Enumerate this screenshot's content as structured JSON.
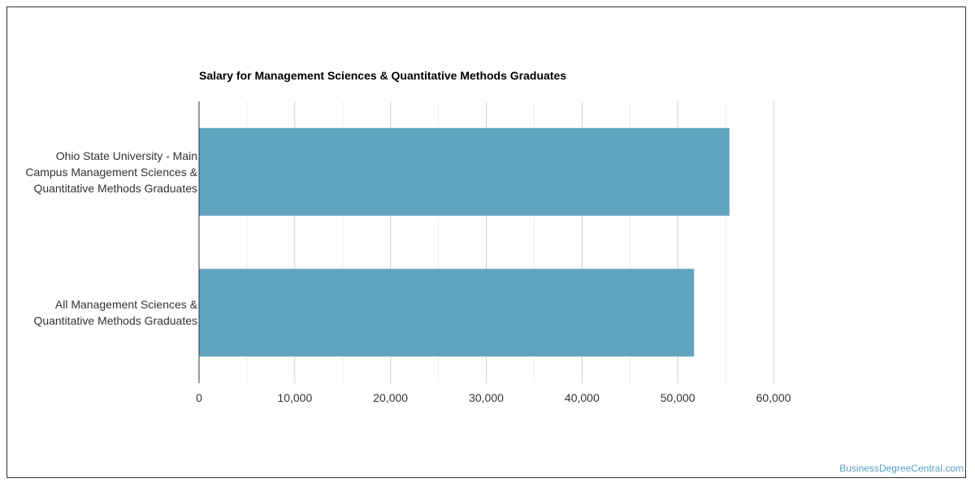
{
  "chart_data": {
    "type": "bar",
    "orientation": "horizontal",
    "title": "Salary for Management Sciences & Quantitative Methods Graduates",
    "categories": [
      "Ohio State University - Main Campus Management Sciences & Quantitative Methods Graduates",
      "All Management Sciences & Quantitative Methods Graduates"
    ],
    "category_lines": [
      [
        "Ohio State University - Main",
        "Campus Management Sciences &",
        "Quantitative Methods Graduates"
      ],
      [
        "All Management Sciences &",
        "Quantitative Methods Graduates"
      ]
    ],
    "values": [
      55400,
      51700
    ],
    "xlim": [
      0,
      60000
    ],
    "x_ticks": [
      0,
      10000,
      20000,
      30000,
      40000,
      50000,
      60000
    ],
    "x_tick_labels": [
      "0",
      "10,000",
      "20,000",
      "30,000",
      "40,000",
      "50,000",
      "60,000"
    ],
    "grid": true,
    "bar_color": "#5fa3bf",
    "xlabel": "",
    "ylabel": ""
  },
  "watermark": "BusinessDegreeCentral.com"
}
